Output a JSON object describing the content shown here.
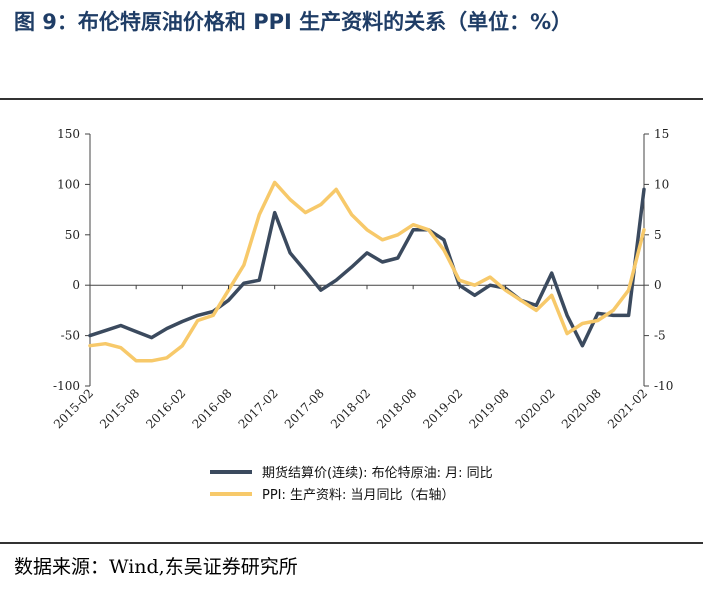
{
  "header": {
    "title": "图 9：布伦特原油价格和 PPI 生产资料的关系（单位：%）"
  },
  "footer": {
    "source": "数据来源：Wind,东吴证券研究所"
  },
  "chart_data": {
    "type": "line",
    "title": "",
    "x": [
      "2015-02",
      "2015-04",
      "2015-06",
      "2015-08",
      "2015-10",
      "2015-12",
      "2016-02",
      "2016-04",
      "2016-06",
      "2016-08",
      "2016-10",
      "2016-12",
      "2017-02",
      "2017-04",
      "2017-06",
      "2017-08",
      "2017-10",
      "2017-12",
      "2018-02",
      "2018-04",
      "2018-06",
      "2018-08",
      "2018-10",
      "2018-12",
      "2019-02",
      "2019-04",
      "2019-06",
      "2019-08",
      "2019-10",
      "2019-12",
      "2020-02",
      "2020-04",
      "2020-06",
      "2020-08",
      "2020-10",
      "2020-12",
      "2021-02"
    ],
    "x_tick_labels": [
      "2015-02",
      "2015-08",
      "2016-02",
      "2016-08",
      "2017-02",
      "2017-08",
      "2018-02",
      "2018-08",
      "2019-02",
      "2019-08",
      "2020-02",
      "2020-08",
      "2021-02"
    ],
    "y_left": {
      "ylim": [
        -100,
        150
      ],
      "ticks": [
        "-100",
        "-50",
        "0",
        "50",
        "100",
        "150"
      ]
    },
    "y_right": {
      "ylim": [
        -10,
        15
      ],
      "ticks": [
        "-10",
        "-5",
        "0",
        "5",
        "10",
        "15"
      ]
    },
    "series": [
      {
        "name": "期货结算价(连续): 布伦特原油: 月: 同比",
        "axis": "left",
        "color": "#3b4a5e",
        "values": [
          -50,
          -45,
          -40,
          -46,
          -52,
          -43,
          -36,
          -30,
          -26,
          -15,
          2,
          5,
          72,
          32,
          14,
          -5,
          5,
          18,
          32,
          23,
          27,
          55,
          55,
          45,
          0,
          -10,
          0,
          -3,
          -15,
          -20,
          12,
          -30,
          -60,
          -28,
          -30,
          -30,
          95
        ]
      },
      {
        "name": "PPI: 生产资料: 当月同比（右轴）",
        "axis": "right",
        "color": "#f7c96a",
        "values": [
          -6.0,
          -5.8,
          -6.2,
          -7.5,
          -7.5,
          -7.2,
          -6.0,
          -3.5,
          -3.0,
          -0.5,
          2.0,
          7.0,
          10.2,
          8.5,
          7.2,
          8.0,
          9.5,
          7.0,
          5.5,
          4.5,
          5.0,
          6.0,
          5.5,
          3.5,
          0.5,
          0.0,
          0.8,
          -0.5,
          -1.5,
          -2.5,
          -1.0,
          -4.8,
          -3.8,
          -3.5,
          -2.5,
          -0.5,
          5.5
        ]
      }
    ],
    "legend_placement": "bottom",
    "grid": false
  }
}
